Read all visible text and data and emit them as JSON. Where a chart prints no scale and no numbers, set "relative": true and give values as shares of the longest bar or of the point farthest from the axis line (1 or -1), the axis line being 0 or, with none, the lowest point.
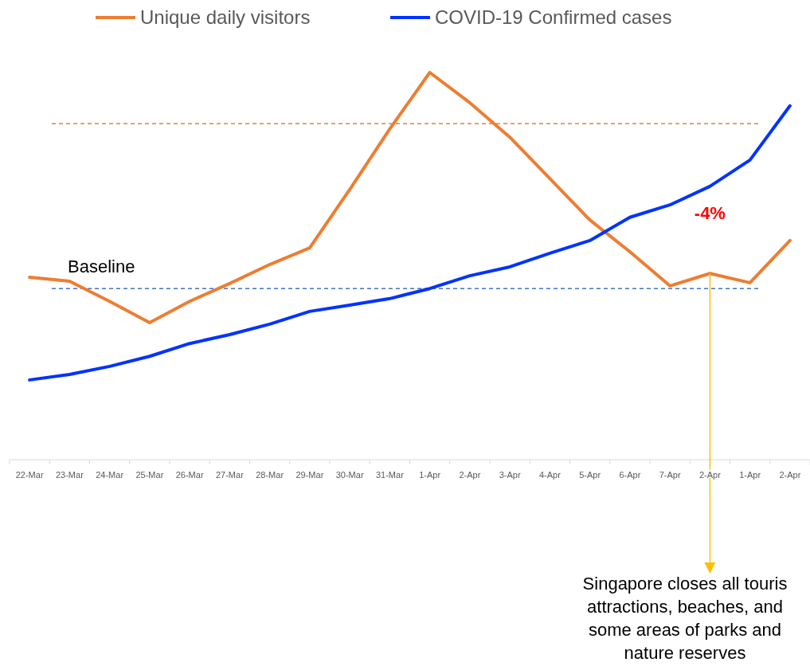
{
  "chart_data": {
    "type": "line",
    "relative": true,
    "categories": [
      "22-Mar",
      "23-Mar",
      "24-Mar",
      "25-Mar",
      "26-Mar",
      "27-Mar",
      "28-Mar",
      "29-Mar",
      "30-Mar",
      "31-Mar",
      "1-Apr",
      "2-Apr",
      "3-Apr",
      "4-Apr",
      "5-Apr",
      "6-Apr",
      "7-Apr",
      "2-Apr",
      "1-Apr",
      "2-Apr"
    ],
    "series": [
      {
        "name": "Unique daily visitors",
        "color": "#ed7d31",
        "values": [
          0.471,
          0.461,
          0.409,
          0.354,
          0.409,
          0.455,
          0.504,
          0.547,
          0.698,
          0.854,
          1,
          0.922,
          0.833,
          0.726,
          0.619,
          0.537,
          0.449,
          0.481,
          0.457,
          0.566
        ]
      },
      {
        "name": "COVID-19 Confirmed cases",
        "color": "#0033ff",
        "values": [
          0.206,
          0.22,
          0.241,
          0.267,
          0.3,
          0.323,
          0.35,
          0.383,
          0.399,
          0.416,
          0.442,
          0.475,
          0.498,
          0.533,
          0.566,
          0.626,
          0.658,
          0.706,
          0.774,
          0.914
        ]
      }
    ],
    "ref_lines": [
      {
        "axis": "y",
        "value": 0.868,
        "label": null,
        "color": "#ed7d31",
        "line_style": "dashed"
      },
      {
        "axis": "y",
        "value": 0.442,
        "label": "Baseline",
        "color": "#4472c4",
        "line_style": "dashed"
      }
    ],
    "annotations": [
      "-4%",
      "Singapore closes all touris attractions, beaches, and some areas of parks and nature reserves"
    ],
    "legend": "top",
    "grid": false,
    "marker": "none",
    "line_style": "solid"
  }
}
